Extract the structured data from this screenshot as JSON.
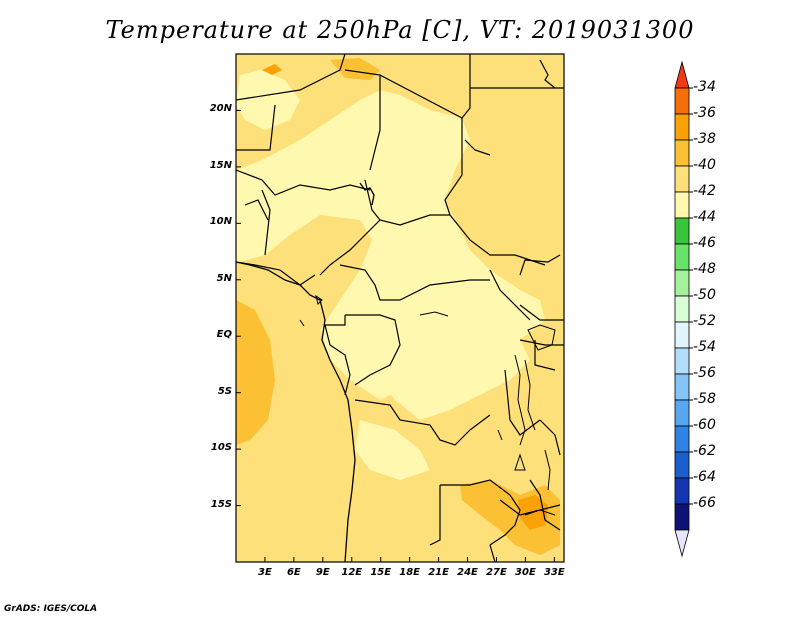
{
  "title": "Temperature at 250hPa [C], VT: 2019031300",
  "footer": "GrADS: IGES/COLA",
  "map": {
    "lon_range": [
      0,
      34
    ],
    "lat_range": [
      -20,
      25
    ],
    "lat_ticks": [
      {
        "lat": 20,
        "label": "20N"
      },
      {
        "lat": 15,
        "label": "15N"
      },
      {
        "lat": 10,
        "label": "10N"
      },
      {
        "lat": 5,
        "label": "5N"
      },
      {
        "lat": 0,
        "label": "EQ"
      },
      {
        "lat": -5,
        "label": "5S"
      },
      {
        "lat": -10,
        "label": "10S"
      },
      {
        "lat": -15,
        "label": "15S"
      }
    ],
    "lon_ticks": [
      {
        "lon": 3,
        "label": "3E"
      },
      {
        "lon": 6,
        "label": "6E"
      },
      {
        "lon": 9,
        "label": "9E"
      },
      {
        "lon": 12,
        "label": "12E"
      },
      {
        "lon": 15,
        "label": "15E"
      },
      {
        "lon": 18,
        "label": "18E"
      },
      {
        "lon": 21,
        "label": "21E"
      },
      {
        "lon": 24,
        "label": "24E"
      },
      {
        "lon": 27,
        "label": "27E"
      },
      {
        "lon": 30,
        "label": "30E"
      },
      {
        "lon": 33,
        "label": "33E"
      }
    ]
  },
  "colorbar": {
    "labels": [
      "-34",
      "-36",
      "-38",
      "-40",
      "-42",
      "-44",
      "-46",
      "-48",
      "-50",
      "-52",
      "-54",
      "-56",
      "-58",
      "-60",
      "-62",
      "-64",
      "-66"
    ],
    "colors": [
      "#f03a14",
      "#f46e0a",
      "#f9a105",
      "#fbc033",
      "#fde07a",
      "#fff8ae",
      "#39c43c",
      "#69e26a",
      "#a6f19c",
      "#d8fed6",
      "#e2f4fe",
      "#b2defa",
      "#84c4f7",
      "#56a7f0",
      "#2e83e3",
      "#1c5dcf",
      "#1536b0",
      "#0c1372",
      "#e6e6fa"
    ]
  }
}
